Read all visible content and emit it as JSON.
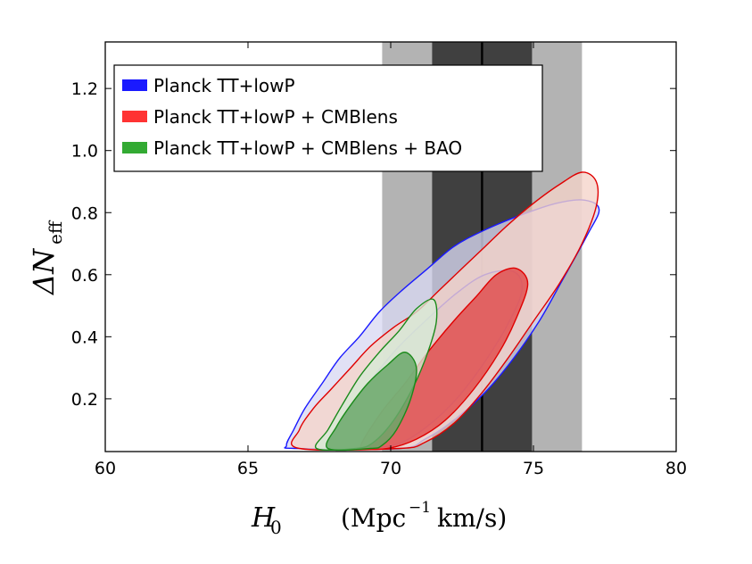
{
  "chart_data": {
    "type": "contour",
    "title": "",
    "xlabel": {
      "symbol": "H",
      "sub": "0",
      "units_open": "(Mpc",
      "units_sup": "−1",
      "units_close": "km/s)"
    },
    "ylabel": {
      "symbol": "ΔN",
      "sub": "eff"
    },
    "xlim": [
      60,
      80
    ],
    "ylim": [
      0.03,
      1.35
    ],
    "xticks": [
      60,
      65,
      70,
      75,
      80
    ],
    "xtick_labels": [
      "60",
      "65",
      "70",
      "75",
      "80"
    ],
    "yticks": [
      0.2,
      0.4,
      0.6,
      0.8,
      1.0,
      1.2
    ],
    "ytick_labels": [
      "0.2",
      "0.4",
      "0.6",
      "0.8",
      "1.0",
      "1.2"
    ],
    "legend_position": "top-left",
    "h0_measurement": {
      "central": 73.2,
      "band_1sigma": [
        71.45,
        74.95
      ],
      "band_2sigma": [
        69.7,
        76.7
      ],
      "colors": {
        "sigma1": "#404040",
        "sigma2": "#b3b3b3",
        "line": "#000000"
      }
    },
    "series": [
      {
        "name": "Planck TT+lowP",
        "legend_color": "#1a1aff",
        "edge": "#1a1aff",
        "fills": {
          "outer": "#d9d9f2",
          "inner": "#a6a6cc"
        },
        "outer": [
          [
            66.35,
            0.05
          ],
          [
            66.6,
            0.1
          ],
          [
            67.0,
            0.17
          ],
          [
            67.6,
            0.25
          ],
          [
            68.2,
            0.33
          ],
          [
            68.9,
            0.4
          ],
          [
            69.6,
            0.48
          ],
          [
            70.4,
            0.55
          ],
          [
            71.3,
            0.62
          ],
          [
            72.2,
            0.69
          ],
          [
            73.2,
            0.74
          ],
          [
            74.5,
            0.79
          ],
          [
            75.8,
            0.83
          ],
          [
            76.8,
            0.84
          ],
          [
            77.3,
            0.81
          ],
          [
            76.9,
            0.73
          ],
          [
            76.0,
            0.58
          ],
          [
            75.2,
            0.45
          ],
          [
            74.3,
            0.33
          ],
          [
            73.3,
            0.22
          ],
          [
            72.2,
            0.13
          ],
          [
            71.2,
            0.07
          ],
          [
            70.3,
            0.04
          ],
          [
            66.7,
            0.04
          ]
        ],
        "inner": [
          [
            67.8,
            0.06
          ],
          [
            68.5,
            0.16
          ],
          [
            69.3,
            0.26
          ],
          [
            70.2,
            0.36
          ],
          [
            71.2,
            0.45
          ],
          [
            72.3,
            0.54
          ],
          [
            73.3,
            0.6
          ],
          [
            74.3,
            0.61
          ],
          [
            74.6,
            0.55
          ],
          [
            74.1,
            0.44
          ],
          [
            73.3,
            0.32
          ],
          [
            72.4,
            0.21
          ],
          [
            71.4,
            0.12
          ],
          [
            70.4,
            0.06
          ],
          [
            69.3,
            0.04
          ],
          [
            67.9,
            0.04
          ]
        ]
      },
      {
        "name": "Planck TT+lowP + CMBlens",
        "legend_color": "#ff3333",
        "edge": "#e00000",
        "fills": {
          "outer": "#f5d4c9",
          "inner": "#e05050"
        },
        "outer": [
          [
            66.8,
            0.1
          ],
          [
            67.3,
            0.17
          ],
          [
            67.9,
            0.23
          ],
          [
            68.6,
            0.3
          ],
          [
            69.3,
            0.37
          ],
          [
            70.1,
            0.43
          ],
          [
            70.9,
            0.48
          ],
          [
            71.7,
            0.55
          ],
          [
            72.5,
            0.62
          ],
          [
            73.3,
            0.69
          ],
          [
            74.1,
            0.76
          ],
          [
            75.0,
            0.83
          ],
          [
            75.9,
            0.89
          ],
          [
            76.7,
            0.93
          ],
          [
            77.2,
            0.9
          ],
          [
            77.2,
            0.82
          ],
          [
            76.7,
            0.7
          ],
          [
            75.9,
            0.57
          ],
          [
            75.0,
            0.45
          ],
          [
            74.1,
            0.33
          ],
          [
            73.2,
            0.22
          ],
          [
            72.2,
            0.12
          ],
          [
            71.2,
            0.06
          ],
          [
            70.3,
            0.04
          ],
          [
            66.8,
            0.04
          ]
        ],
        "inner": [
          [
            69.0,
            0.06
          ],
          [
            69.7,
            0.16
          ],
          [
            70.5,
            0.25
          ],
          [
            71.3,
            0.35
          ],
          [
            72.2,
            0.45
          ],
          [
            73.0,
            0.53
          ],
          [
            73.7,
            0.6
          ],
          [
            74.4,
            0.62
          ],
          [
            74.8,
            0.57
          ],
          [
            74.4,
            0.46
          ],
          [
            73.8,
            0.35
          ],
          [
            72.9,
            0.23
          ],
          [
            71.9,
            0.13
          ],
          [
            70.9,
            0.07
          ],
          [
            69.9,
            0.04
          ],
          [
            69.1,
            0.04
          ]
        ]
      },
      {
        "name": "Planck TT+lowP + CMBlens + BAO",
        "legend_color": "#33aa33",
        "edge": "#1a8a1a",
        "fills": {
          "outer": "#d6ead6",
          "inner": "#6aa86a"
        },
        "outer": [
          [
            67.4,
            0.04
          ],
          [
            67.8,
            0.1
          ],
          [
            68.3,
            0.18
          ],
          [
            68.9,
            0.27
          ],
          [
            69.6,
            0.35
          ],
          [
            70.3,
            0.42
          ],
          [
            70.9,
            0.49
          ],
          [
            71.5,
            0.52
          ],
          [
            71.6,
            0.45
          ],
          [
            71.3,
            0.35
          ],
          [
            70.8,
            0.24
          ],
          [
            70.1,
            0.13
          ],
          [
            69.4,
            0.06
          ],
          [
            68.8,
            0.04
          ]
        ],
        "inner": [
          [
            67.8,
            0.04
          ],
          [
            68.1,
            0.11
          ],
          [
            68.6,
            0.18
          ],
          [
            69.2,
            0.25
          ],
          [
            69.9,
            0.31
          ],
          [
            70.5,
            0.35
          ],
          [
            70.9,
            0.3
          ],
          [
            70.7,
            0.2
          ],
          [
            70.2,
            0.1
          ],
          [
            69.7,
            0.05
          ],
          [
            69.3,
            0.04
          ]
        ]
      }
    ]
  }
}
